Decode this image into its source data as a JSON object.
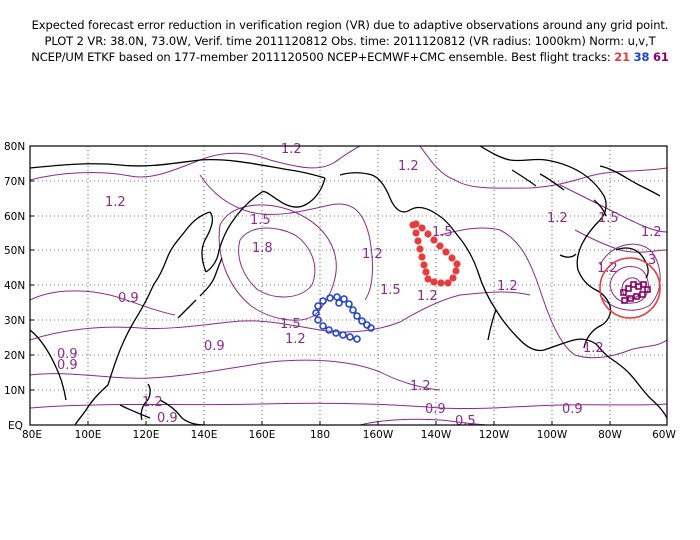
{
  "header": {
    "line1": "Expected forecast error reduction in verification region (VR) due to adaptive observations around any grid point.",
    "line2": "PLOT 2 VR: 38.0N, 73.0W, Verif. time 2011120812 Obs. time: 2011120812 (VR radius: 1000km) Norm: u,v,T",
    "line3_prefix": "NCEP/UM ETKF based on 177-member 2011120500 NCEP+ECMWF+CMC ensemble. Best flight tracks:",
    "track_21": "21",
    "track_38": "38",
    "track_61": "61"
  },
  "axes": {
    "lat_labels": [
      "80N",
      "70N",
      "60N",
      "50N",
      "40N",
      "30N",
      "20N",
      "10N",
      "EQ"
    ],
    "lon_labels": [
      "80E",
      "100E",
      "120E",
      "140E",
      "160E",
      "180",
      "160W",
      "140W",
      "120W",
      "100W",
      "80W",
      "60W"
    ]
  },
  "contour_labels": [
    {
      "text": "1.2"
    },
    {
      "text": "1.2"
    },
    {
      "text": "1.2"
    },
    {
      "text": "1.5"
    },
    {
      "text": "1.2"
    },
    {
      "text": "1.2"
    },
    {
      "text": "1.5"
    },
    {
      "text": "1.5"
    },
    {
      "text": "1.8"
    },
    {
      "text": "0.9"
    },
    {
      "text": "1.2"
    },
    {
      "text": "1.5"
    },
    {
      "text": "1.5"
    },
    {
      "text": "1.2"
    },
    {
      "text": "0.9"
    },
    {
      "text": "0.9"
    },
    {
      "text": "0.9"
    },
    {
      "text": "1.2"
    },
    {
      "text": "1.2"
    },
    {
      "text": "0.9"
    },
    {
      "text": "0.9"
    },
    {
      "text": "0.9"
    },
    {
      "text": "0.5"
    },
    {
      "text": "1.2"
    },
    {
      "text": "1.2"
    },
    {
      "text": "1.2"
    },
    {
      "text": "1.2"
    },
    {
      "text": "3"
    }
  ],
  "colors": {
    "contour": "#8a2b8a",
    "track_21": "#e83b3b",
    "track_38": "#2244cc",
    "track_61": "#880066",
    "vr_circle": "#e83b3b",
    "coast": "#000000"
  },
  "verification_region": {
    "center_lat": 38.0,
    "center_lon": -73.0,
    "radius_km": 1000
  }
}
